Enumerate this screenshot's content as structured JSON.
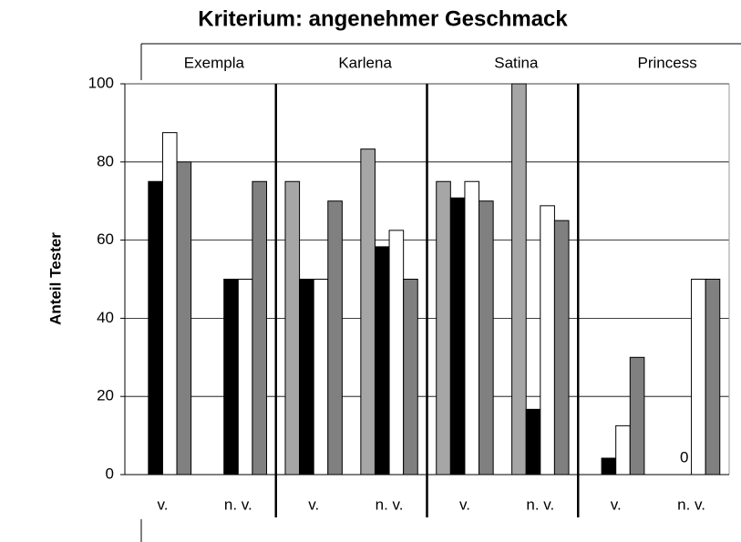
{
  "chart_data": {
    "type": "bar",
    "title": "Kriterium: angenehmer Geschmack",
    "ylabel": "Anteil Tester",
    "groups": [
      "Exempla",
      "Karlena",
      "Satina",
      "Princess"
    ],
    "categories": [
      "v.",
      "n. v.",
      "v.",
      "n. v.",
      "v.",
      "n. v.",
      "v.",
      "n. v."
    ],
    "series": [
      {
        "color": "#a6a6a6",
        "values": [
          null,
          null,
          75,
          83.3,
          75,
          100,
          null,
          null
        ]
      },
      {
        "color": "#000000",
        "values": [
          75,
          50,
          50,
          58.3,
          70.8,
          16.7,
          4.2,
          0
        ],
        "value_labels": [
          null,
          null,
          null,
          null,
          null,
          null,
          null,
          "0"
        ]
      },
      {
        "color": "#ffffff",
        "values": [
          87.5,
          50,
          50,
          62.5,
          75,
          68.8,
          12.5,
          50
        ]
      },
      {
        "color": "#808080",
        "values": [
          80,
          75,
          70,
          50,
          70,
          65,
          30,
          50
        ]
      }
    ],
    "ylim": [
      0,
      100
    ],
    "yticks": [
      0,
      20,
      40,
      60,
      80,
      100
    ],
    "grid": true
  }
}
